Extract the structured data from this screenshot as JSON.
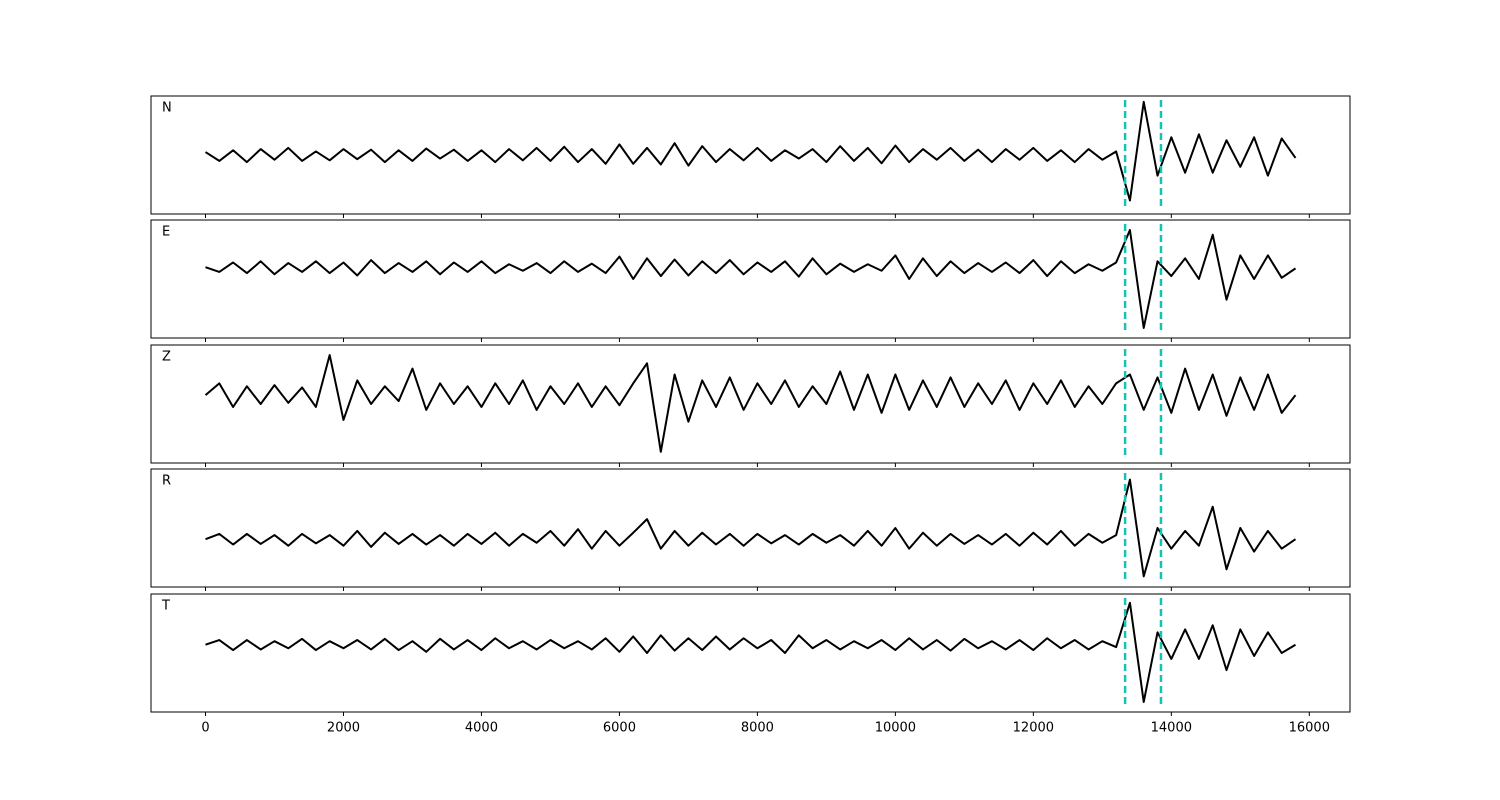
{
  "chart_data": {
    "type": "line",
    "subplots": true,
    "color": "#000000",
    "x": [
      0,
      200,
      400,
      600,
      800,
      1000,
      1200,
      1400,
      1600,
      1800,
      2000,
      2200,
      2400,
      2600,
      2800,
      3000,
      3200,
      3400,
      3600,
      3800,
      4000,
      4200,
      4400,
      4600,
      4800,
      5000,
      5200,
      5400,
      5600,
      5800,
      6000,
      6200,
      6400,
      6600,
      6800,
      7000,
      7200,
      7400,
      7600,
      7800,
      8000,
      8200,
      8400,
      8600,
      8800,
      9000,
      9200,
      9400,
      9600,
      9800,
      10000,
      10200,
      10400,
      10600,
      10800,
      11000,
      11200,
      11400,
      11600,
      11800,
      12000,
      12200,
      12400,
      12600,
      12800,
      13000,
      13200,
      13400,
      13600,
      13800,
      14000,
      14200,
      14400,
      14600,
      14800,
      15000,
      15200,
      15400,
      15600,
      15800
    ],
    "series": [
      {
        "name": "N",
        "values": [
          0.05,
          -0.1,
          0.08,
          -0.12,
          0.1,
          -0.08,
          0.12,
          -0.1,
          0.06,
          -0.09,
          0.1,
          -0.07,
          0.09,
          -0.12,
          0.08,
          -0.1,
          0.11,
          -0.06,
          0.09,
          -0.1,
          0.08,
          -0.12,
          0.1,
          -0.09,
          0.12,
          -0.1,
          0.14,
          -0.12,
          0.1,
          -0.15,
          0.18,
          -0.15,
          0.12,
          -0.16,
          0.2,
          -0.18,
          0.15,
          -0.12,
          0.1,
          -0.09,
          0.12,
          -0.1,
          0.08,
          -0.06,
          0.1,
          -0.12,
          0.15,
          -0.1,
          0.12,
          -0.14,
          0.16,
          -0.12,
          0.1,
          -0.08,
          0.12,
          -0.1,
          0.09,
          -0.12,
          0.1,
          -0.08,
          0.12,
          -0.1,
          0.08,
          -0.12,
          0.1,
          -0.08,
          0.06,
          -0.77,
          0.9,
          -0.35,
          0.3,
          -0.3,
          0.35,
          -0.3,
          0.25,
          -0.2,
          0.3,
          -0.35,
          0.28,
          -0.05
        ]
      },
      {
        "name": "E",
        "values": [
          0.2,
          0.12,
          0.28,
          0.1,
          0.3,
          0.08,
          0.27,
          0.12,
          0.3,
          0.1,
          0.28,
          0.06,
          0.32,
          0.1,
          0.27,
          0.12,
          0.3,
          0.08,
          0.28,
          0.12,
          0.3,
          0.1,
          0.25,
          0.14,
          0.27,
          0.1,
          0.3,
          0.12,
          0.26,
          0.1,
          0.38,
          0.0,
          0.35,
          0.05,
          0.33,
          0.06,
          0.3,
          0.1,
          0.32,
          0.08,
          0.28,
          0.12,
          0.3,
          0.04,
          0.35,
          0.08,
          0.26,
          0.12,
          0.25,
          0.14,
          0.4,
          0.0,
          0.35,
          0.05,
          0.3,
          0.1,
          0.27,
          0.12,
          0.28,
          0.1,
          0.32,
          0.05,
          0.3,
          0.1,
          0.25,
          0.14,
          0.28,
          0.83,
          -0.83,
          0.3,
          0.05,
          0.35,
          0.0,
          0.75,
          -0.35,
          0.4,
          0.0,
          0.4,
          0.02,
          0.18
        ]
      },
      {
        "name": "Z",
        "values": [
          0.15,
          0.35,
          -0.05,
          0.3,
          0.0,
          0.32,
          0.02,
          0.28,
          -0.05,
          0.83,
          -0.27,
          0.4,
          0.0,
          0.3,
          0.05,
          0.6,
          -0.1,
          0.35,
          0.0,
          0.3,
          -0.05,
          0.35,
          0.0,
          0.4,
          -0.1,
          0.3,
          0.0,
          0.35,
          -0.05,
          0.3,
          -0.02,
          0.35,
          0.69,
          -0.81,
          0.5,
          -0.3,
          0.4,
          -0.05,
          0.45,
          -0.1,
          0.35,
          0.0,
          0.4,
          -0.05,
          0.3,
          0.0,
          0.55,
          -0.1,
          0.5,
          -0.15,
          0.5,
          -0.1,
          0.4,
          -0.05,
          0.45,
          -0.05,
          0.35,
          0.0,
          0.4,
          -0.1,
          0.35,
          0.0,
          0.4,
          -0.05,
          0.3,
          0.0,
          0.35,
          0.5,
          -0.1,
          0.45,
          -0.15,
          0.6,
          -0.1,
          0.5,
          -0.2,
          0.45,
          -0.1,
          0.5,
          -0.15,
          0.15
        ]
      },
      {
        "name": "R",
        "values": [
          -0.19,
          -0.1,
          -0.28,
          -0.1,
          -0.27,
          -0.12,
          -0.3,
          -0.1,
          -0.26,
          -0.12,
          -0.3,
          -0.05,
          -0.32,
          -0.08,
          -0.27,
          -0.1,
          -0.28,
          -0.12,
          -0.3,
          -0.1,
          -0.27,
          -0.08,
          -0.3,
          -0.1,
          -0.25,
          -0.05,
          -0.3,
          -0.02,
          -0.35,
          -0.05,
          -0.3,
          -0.08,
          0.15,
          -0.35,
          -0.05,
          -0.3,
          -0.08,
          -0.28,
          -0.1,
          -0.3,
          -0.1,
          -0.26,
          -0.12,
          -0.28,
          -0.1,
          -0.25,
          -0.12,
          -0.3,
          -0.05,
          -0.3,
          0.0,
          -0.35,
          -0.08,
          -0.3,
          -0.1,
          -0.27,
          -0.12,
          -0.28,
          -0.1,
          -0.3,
          -0.08,
          -0.28,
          -0.05,
          -0.3,
          -0.1,
          -0.25,
          -0.12,
          0.82,
          -0.82,
          0.0,
          -0.35,
          -0.05,
          -0.3,
          0.36,
          -0.7,
          0.0,
          -0.4,
          -0.05,
          -0.35,
          -0.19
        ]
      },
      {
        "name": "T",
        "values": [
          0.14,
          0.22,
          0.05,
          0.22,
          0.06,
          0.2,
          0.08,
          0.24,
          0.05,
          0.2,
          0.08,
          0.22,
          0.06,
          0.24,
          0.05,
          0.2,
          0.02,
          0.24,
          0.06,
          0.22,
          0.05,
          0.25,
          0.08,
          0.2,
          0.06,
          0.22,
          0.08,
          0.2,
          0.06,
          0.25,
          0.02,
          0.28,
          0.0,
          0.3,
          0.04,
          0.25,
          0.05,
          0.28,
          0.06,
          0.25,
          0.08,
          0.22,
          0.0,
          0.3,
          0.08,
          0.22,
          0.06,
          0.2,
          0.08,
          0.22,
          0.05,
          0.25,
          0.06,
          0.22,
          0.04,
          0.24,
          0.08,
          0.2,
          0.06,
          0.22,
          0.05,
          0.25,
          0.08,
          0.22,
          0.06,
          0.2,
          0.1,
          0.85,
          -0.83,
          0.35,
          -0.1,
          0.4,
          -0.1,
          0.47,
          -0.29,
          0.4,
          -0.05,
          0.35,
          0.0,
          0.14
        ]
      }
    ],
    "xlim": [
      -790,
      16590
    ],
    "xticks": [
      0,
      2000,
      4000,
      6000,
      8000,
      10000,
      12000,
      14000,
      16000
    ],
    "ylim": [
      -1,
      1
    ],
    "vlines": [
      13330,
      13850
    ],
    "vline_color": "#17c1b5",
    "vline_style": "dashed"
  }
}
